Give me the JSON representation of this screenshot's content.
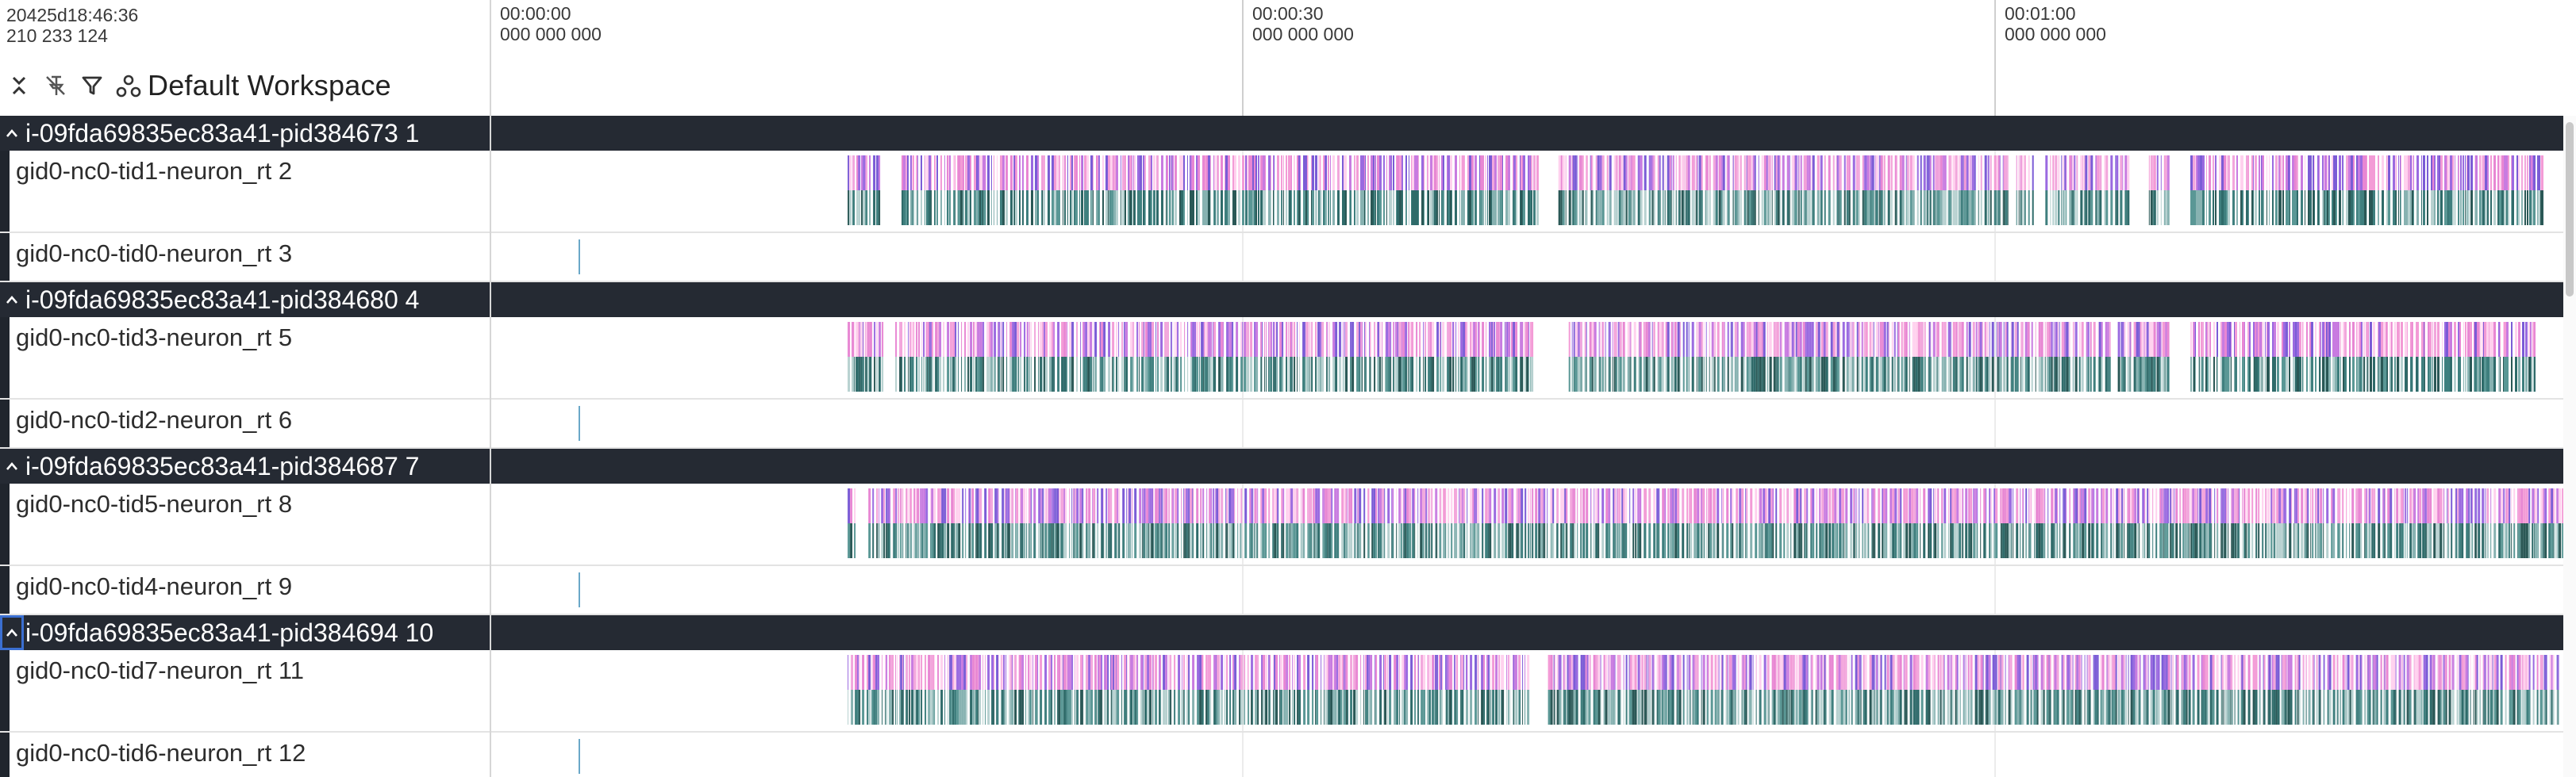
{
  "header": {
    "timestamp_line1": "20425d18:46:36",
    "timestamp_line2": "210 233 124",
    "workspace_label": "Default Workspace",
    "toolbar_icons": [
      "collapse-all-icon",
      "unpin-icon",
      "filter-icon",
      "workspace-icon"
    ]
  },
  "ruler": {
    "ticks": [
      {
        "time": "00:00:00",
        "sub": "000 000 000"
      },
      {
        "time": "00:00:30",
        "sub": "000 000 000"
      },
      {
        "time": "00:01:00",
        "sub": "000 000 000"
      }
    ]
  },
  "groups": [
    {
      "title": "i-09fda69835ec83a41-pid384673 1",
      "rows": [
        {
          "label": "gid0-nc0-tid1-neuron_rt 2",
          "kind": "dense",
          "ranges": [
            [
              0.172,
              0.187
            ],
            [
              0.198,
              0.505
            ],
            [
              0.515,
              0.732
            ],
            [
              0.736,
              0.744
            ],
            [
              0.75,
              0.79
            ],
            [
              0.8,
              0.81
            ],
            [
              0.82,
              0.99
            ]
          ]
        },
        {
          "label": "gid0-nc0-tid0-neuron_rt 3",
          "kind": "single",
          "marker": 0.042
        }
      ]
    },
    {
      "title": "i-09fda69835ec83a41-pid384680 4",
      "rows": [
        {
          "label": "gid0-nc0-tid3-neuron_rt 5",
          "kind": "dense",
          "ranges": [
            [
              0.172,
              0.19
            ],
            [
              0.195,
              0.502
            ],
            [
              0.52,
              0.782
            ],
            [
              0.785,
              0.81
            ],
            [
              0.82,
              0.986
            ]
          ]
        },
        {
          "label": "gid0-nc0-tid2-neuron_rt 6",
          "kind": "single",
          "marker": 0.042
        }
      ]
    },
    {
      "title": "i-09fda69835ec83a41-pid384687 7",
      "rows": [
        {
          "label": "gid0-nc0-tid5-neuron_rt 8",
          "kind": "dense",
          "ranges": [
            [
              0.172,
              0.176
            ],
            [
              0.182,
              1.0
            ]
          ]
        },
        {
          "label": "gid0-nc0-tid4-neuron_rt 9",
          "kind": "single",
          "marker": 0.042
        }
      ]
    },
    {
      "title": "i-09fda69835ec83a41-pid384694 10",
      "focused": true,
      "rows": [
        {
          "label": "gid0-nc0-tid7-neuron_rt 11",
          "kind": "dense",
          "ranges": [
            [
              0.172,
              0.5
            ],
            [
              0.51,
              0.998
            ]
          ]
        },
        {
          "label": "gid0-nc0-tid6-neuron_rt 12",
          "kind": "single",
          "marker": 0.042
        }
      ]
    }
  ],
  "colors": {
    "header_bg": "#252a33",
    "slice_top": [
      "#f39bd6",
      "#e887d3",
      "#c87be0",
      "#9a6ae0",
      "#7b5cd6",
      "#f2a6dc",
      "#ffd1ee"
    ],
    "slice_bottom": [
      "#2f6b6a",
      "#3f7f7e",
      "#5a9795",
      "#87b2b1",
      "#b7d1d0",
      "#2a5856"
    ],
    "single_marker": "#6aa8c8"
  }
}
